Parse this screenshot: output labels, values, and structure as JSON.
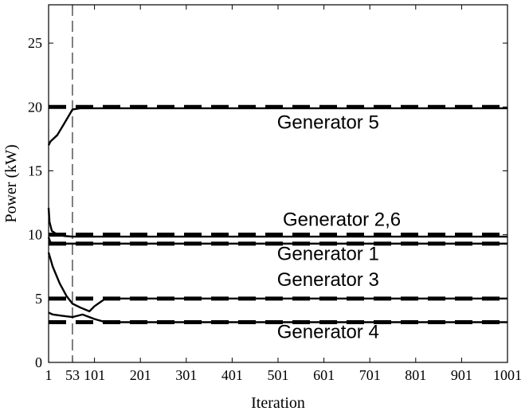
{
  "chart_data": {
    "type": "line",
    "title": "",
    "xlabel": "Iteration",
    "ylabel": "Power (kW)",
    "xlim": [
      1,
      1001
    ],
    "ylim": [
      0,
      28
    ],
    "xticks": [
      1,
      53,
      101,
      201,
      301,
      401,
      501,
      601,
      701,
      801,
      901,
      1001
    ],
    "xtick_labels": [
      "1",
      "53",
      "101",
      "201",
      "301",
      "401",
      "501",
      "601",
      "701",
      "801",
      "901",
      "1001"
    ],
    "yticks": [
      0,
      5,
      10,
      15,
      20,
      25
    ],
    "ytick_labels": [
      "0",
      "5",
      "10",
      "15",
      "20",
      "25"
    ],
    "grid": false,
    "legend": "none",
    "vertical_marker": 53,
    "series": [
      {
        "label": "Generator 5",
        "x": [
          1,
          5,
          20,
          35,
          53,
          70,
          101,
          200,
          400,
          600,
          800,
          1001
        ],
        "y": [
          17.0,
          17.3,
          17.8,
          18.7,
          19.8,
          19.9,
          19.9,
          19.9,
          19.9,
          19.9,
          19.9,
          19.9
        ],
        "reference": 20.0
      },
      {
        "label": "Generator 2,6",
        "x": [
          1,
          3,
          8,
          20,
          35,
          53,
          101,
          200,
          400,
          600,
          800,
          1001
        ],
        "y": [
          12.1,
          11.0,
          10.3,
          10.0,
          9.9,
          9.85,
          9.85,
          9.85,
          9.85,
          9.85,
          9.85,
          9.85
        ],
        "reference": 10.0
      },
      {
        "label": "Generator 1",
        "x": [
          1,
          5,
          15,
          30,
          53,
          101,
          200,
          400,
          600,
          800,
          1001
        ],
        "y": [
          9.8,
          9.4,
          9.3,
          9.3,
          9.3,
          9.3,
          9.3,
          9.3,
          9.3,
          9.3,
          9.3
        ],
        "reference": 9.3
      },
      {
        "label": "Generator 3",
        "x": [
          1,
          10,
          25,
          40,
          53,
          70,
          90,
          101,
          125,
          200,
          400,
          600,
          800,
          1001
        ],
        "y": [
          8.6,
          7.5,
          6.2,
          5.2,
          4.6,
          4.3,
          4.0,
          4.4,
          5.0,
          5.0,
          5.0,
          5.0,
          5.0,
          5.0
        ],
        "reference": 5.0
      },
      {
        "label": "Generator 4",
        "x": [
          1,
          10,
          30,
          53,
          75,
          101,
          125,
          200,
          400,
          600,
          800,
          1001
        ],
        "y": [
          3.9,
          3.75,
          3.65,
          3.55,
          3.75,
          3.4,
          3.15,
          3.15,
          3.15,
          3.15,
          3.15,
          3.15
        ],
        "reference": 3.15
      }
    ],
    "annotations": [
      {
        "text": "Generator 5",
        "x": 610,
        "y": 18.3
      },
      {
        "text": "Generator 2,6",
        "x": 640,
        "y": 10.7
      },
      {
        "text": "Generator 1",
        "x": 610,
        "y": 8.0
      },
      {
        "text": "Generator 3",
        "x": 610,
        "y": 6.0
      },
      {
        "text": "Generator 4",
        "x": 610,
        "y": 1.9
      }
    ]
  }
}
